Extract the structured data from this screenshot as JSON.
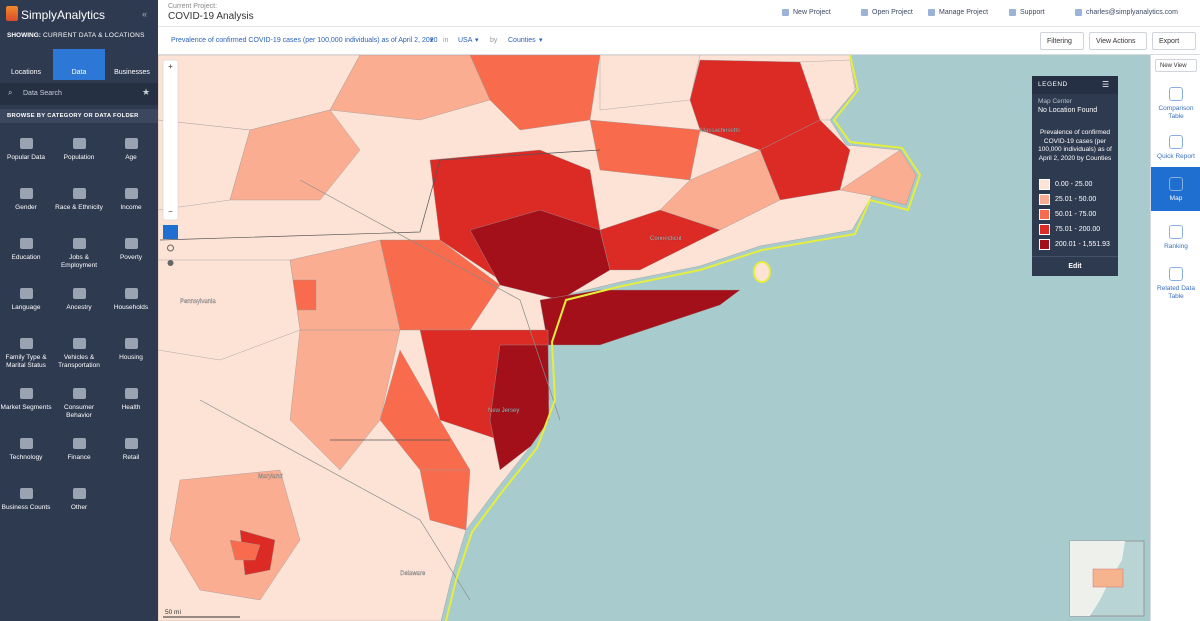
{
  "header": {
    "logo": "SimplyAnalytics",
    "project_label": "Current Project:",
    "project_name": "COVID-19 Analysis",
    "menu": [
      "New Project",
      "Open Project",
      "Manage Project",
      "Support",
      "charles@simplyanalytics.com"
    ]
  },
  "sidebar": {
    "showing": "SHOWING:",
    "showing_value": "CURRENT DATA & LOCATIONS",
    "tabs": [
      "Locations",
      "Data",
      "Businesses"
    ],
    "search_placeholder": "Data Search",
    "browse": "BROWSE BY CATEGORY OR DATA FOLDER",
    "categories": [
      "Popular Data",
      "Population",
      "Age",
      "Gender",
      "Race & Ethnicity",
      "Income",
      "Education",
      "Jobs & Employment",
      "Poverty",
      "Language",
      "Ancestry",
      "Households",
      "Family Type & Marital Status",
      "Vehicles & Transportation",
      "Housing",
      "Market Segments",
      "Consumer Behavior",
      "Health",
      "Technology",
      "Finance",
      "Retail",
      "Business Counts",
      "Other"
    ]
  },
  "toolbar": {
    "variable": "Prevalence of confirmed COVID-19 cases (per 100,000 individuals) as of April 2, 2020",
    "in": "in",
    "location": "USA",
    "by": "by",
    "unit": "Counties",
    "buttons": [
      "Filtering",
      "View Actions",
      "Export"
    ]
  },
  "map": {
    "labels": [
      "Massachusetts",
      "Connecticut",
      "New Jersey",
      "Pennsylvania",
      "Maryland",
      "Delaware"
    ],
    "scale": "50 mi"
  },
  "legend": {
    "title": "LEGEND",
    "map_center_label": "Map Center",
    "map_center_value": "No Location Found",
    "heading": "Prevalence of confirmed COVID-19 cases (per 100,000 individuals) as of April 2, 2020 by Counties",
    "items": [
      {
        "label": "0.00 - 25.00",
        "color": "#fde3d6"
      },
      {
        "label": "25.01 - 50.00",
        "color": "#fbad92"
      },
      {
        "label": "50.01 - 75.00",
        "color": "#f86b4d"
      },
      {
        "label": "75.01 - 200.00",
        "color": "#dc2a25"
      },
      {
        "label": "200.01 - 1,551.93",
        "color": "#a3101a"
      }
    ],
    "edit": "Edit"
  },
  "right_panel": {
    "new_view": "New View",
    "items": [
      "Comparison Table",
      "Quick Report",
      "Map",
      "Ranking",
      "Related Data Table"
    ]
  }
}
